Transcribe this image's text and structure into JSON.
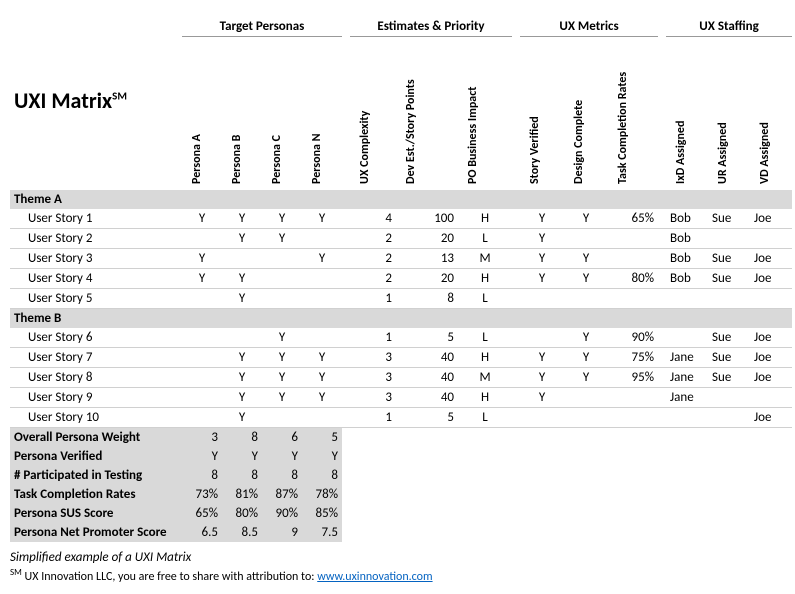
{
  "title": "UXI Matrix",
  "title_suffix": "SM",
  "groups": [
    "Target Personas",
    "Estimates & Priority",
    "UX Metrics",
    "UX Staffing"
  ],
  "persona_cols": [
    "Persona A",
    "Persona B",
    "Persona C",
    "Persona N"
  ],
  "est_cols": [
    "UX Complexity",
    "Dev Est./Story Points",
    "PO Business Impact"
  ],
  "metric_cols": [
    "Story Verified",
    "Design Complete",
    "Task Completion Rates"
  ],
  "staff_cols": [
    "IxD Assigned",
    "UR Assigned",
    "VD Assigned"
  ],
  "themes": [
    {
      "name": "Theme A",
      "stories": [
        {
          "name": "User Story 1",
          "p": [
            "Y",
            "Y",
            "Y",
            "Y"
          ],
          "uxc": "4",
          "dev": "100",
          "impact": "H",
          "sv": "Y",
          "dc": "Y",
          "tcr": "65%",
          "ixd": "Bob",
          "ur": "Sue",
          "vd": "Joe"
        },
        {
          "name": "User Story 2",
          "p": [
            "",
            "Y",
            "Y",
            ""
          ],
          "uxc": "2",
          "dev": "20",
          "impact": "L",
          "sv": "Y",
          "dc": "",
          "tcr": "",
          "ixd": "Bob",
          "ur": "",
          "vd": ""
        },
        {
          "name": "User Story 3",
          "p": [
            "Y",
            "",
            "",
            "Y"
          ],
          "uxc": "2",
          "dev": "13",
          "impact": "M",
          "sv": "Y",
          "dc": "Y",
          "tcr": "",
          "ixd": "Bob",
          "ur": "Sue",
          "vd": "Joe"
        },
        {
          "name": "User Story 4",
          "p": [
            "Y",
            "Y",
            "",
            ""
          ],
          "uxc": "2",
          "dev": "20",
          "impact": "H",
          "sv": "Y",
          "dc": "Y",
          "tcr": "80%",
          "ixd": "Bob",
          "ur": "Sue",
          "vd": "Joe"
        },
        {
          "name": "User Story 5",
          "p": [
            "",
            "Y",
            "",
            ""
          ],
          "uxc": "1",
          "dev": "8",
          "impact": "L",
          "sv": "",
          "dc": "",
          "tcr": "",
          "ixd": "",
          "ur": "",
          "vd": ""
        }
      ]
    },
    {
      "name": "Theme B",
      "stories": [
        {
          "name": "User Story 6",
          "p": [
            "",
            "",
            "Y",
            ""
          ],
          "uxc": "1",
          "dev": "5",
          "impact": "L",
          "sv": "",
          "dc": "Y",
          "tcr": "90%",
          "ixd": "",
          "ur": "Sue",
          "vd": "Joe"
        },
        {
          "name": "User Story 7",
          "p": [
            "",
            "Y",
            "Y",
            "Y"
          ],
          "uxc": "3",
          "dev": "40",
          "impact": "H",
          "sv": "Y",
          "dc": "Y",
          "tcr": "75%",
          "ixd": "Jane",
          "ur": "Sue",
          "vd": "Joe"
        },
        {
          "name": "User Story 8",
          "p": [
            "",
            "Y",
            "Y",
            "Y"
          ],
          "uxc": "3",
          "dev": "40",
          "impact": "M",
          "sv": "Y",
          "dc": "Y",
          "tcr": "95%",
          "ixd": "Jane",
          "ur": "Sue",
          "vd": "Joe"
        },
        {
          "name": "User Story 9",
          "p": [
            "",
            "Y",
            "Y",
            "Y"
          ],
          "uxc": "3",
          "dev": "40",
          "impact": "H",
          "sv": "Y",
          "dc": "",
          "tcr": "",
          "ixd": "Jane",
          "ur": "",
          "vd": ""
        },
        {
          "name": "User Story 10",
          "p": [
            "",
            "Y",
            "",
            ""
          ],
          "uxc": "1",
          "dev": "5",
          "impact": "L",
          "sv": "",
          "dc": "",
          "tcr": "",
          "ixd": "",
          "ur": "",
          "vd": "Joe"
        }
      ]
    }
  ],
  "summary": [
    {
      "label": "Overall Persona Weight",
      "vals": [
        "3",
        "8",
        "6",
        "5"
      ]
    },
    {
      "label": "Persona Verified",
      "vals": [
        "Y",
        "Y",
        "Y",
        "Y"
      ]
    },
    {
      "label": "# Participated in Testing",
      "vals": [
        "8",
        "8",
        "8",
        "8"
      ]
    },
    {
      "label": "Task Completion Rates",
      "vals": [
        "73%",
        "81%",
        "87%",
        "78%"
      ]
    },
    {
      "label": "Persona SUS Score",
      "vals": [
        "65%",
        "80%",
        "90%",
        "85%"
      ]
    },
    {
      "label": "Persona Net Promoter Score",
      "vals": [
        "6.5",
        "8.5",
        "9",
        "7.5"
      ]
    }
  ],
  "footer1": "Simplified example of a UXI Matrix",
  "footer2_prefix": " UX Innovation LLC, you are free to share with attribution to:  ",
  "footer2_sm": "SM",
  "link_text": "www.uxinnovation.com",
  "link_href": "http://www.uxinnovation.com"
}
